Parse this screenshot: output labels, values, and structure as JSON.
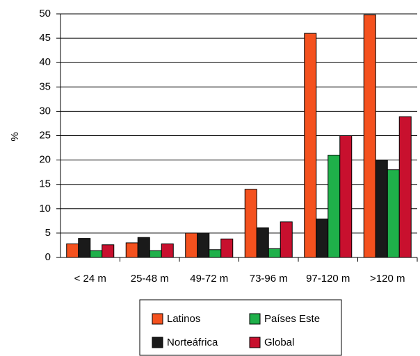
{
  "chart_data": {
    "type": "bar",
    "title": "",
    "xlabel": "",
    "ylabel": "%",
    "ylim": [
      0,
      50
    ],
    "yticks": [
      0,
      5,
      10,
      15,
      20,
      25,
      30,
      35,
      40,
      45,
      50
    ],
    "grid": "horizontal",
    "legend": "bottom-center",
    "categories": [
      "< 24 m",
      "25-48 m",
      "49-72 m",
      "73-96 m",
      "97-120 m",
      ">120 m"
    ],
    "series": [
      {
        "name": "Latinos",
        "color": "#f4511e",
        "values": [
          2.8,
          3.0,
          5.0,
          14.0,
          46.0,
          49.8
        ]
      },
      {
        "name": "Norteáfrica",
        "color": "#1a1a1a",
        "values": [
          3.9,
          4.1,
          5.0,
          6.1,
          7.9,
          20.0
        ]
      },
      {
        "name": "Países Este",
        "color": "#1fb04a",
        "values": [
          1.4,
          1.4,
          1.6,
          1.8,
          21.0,
          18.0
        ]
      },
      {
        "name": "Global",
        "color": "#c8102e",
        "values": [
          2.6,
          2.8,
          3.8,
          7.3,
          25.0,
          28.9
        ]
      }
    ],
    "legend_order": [
      0,
      2,
      1,
      3
    ]
  }
}
